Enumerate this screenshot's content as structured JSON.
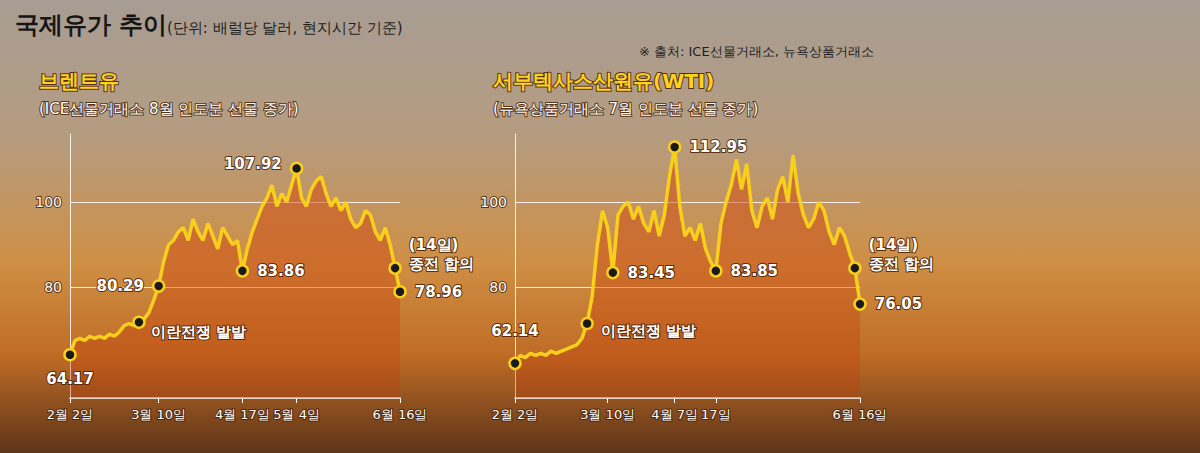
{
  "title": "국제유가 추이",
  "subtitle": "(단위: 배럴당 달러, 현지시간 기준)",
  "source": "※ 출처: ICE선물거래소, 뉴욕상품거래소",
  "chart_data": [
    {
      "type": "area",
      "title": "브렌트유",
      "subtitle": "(ICE선물거래소 8월 인도분 선물 종가)",
      "categories": [
        "2월 2일",
        null,
        null,
        null,
        null,
        null,
        null,
        null,
        null,
        null,
        null,
        null,
        null,
        null,
        null,
        null,
        null,
        null,
        "3월 10일",
        null,
        null,
        null,
        null,
        null,
        null,
        null,
        null,
        null,
        null,
        null,
        null,
        null,
        null,
        null,
        null,
        "4월 17일",
        null,
        null,
        null,
        null,
        null,
        null,
        null,
        null,
        null,
        null,
        "5월 4일",
        null,
        null,
        null,
        null,
        null,
        null,
        null,
        null,
        null,
        null,
        null,
        null,
        null,
        null,
        null,
        null,
        null,
        null,
        null,
        null,
        "6월 16일"
      ],
      "values": [
        64.17,
        67.5,
        68,
        67.5,
        68.5,
        68,
        68.5,
        68,
        69,
        68.5,
        69.5,
        71,
        71.5,
        71,
        71.8,
        72.5,
        74,
        77,
        80.29,
        86,
        90,
        91,
        93,
        94,
        91,
        96,
        93,
        91,
        95,
        92,
        89,
        94,
        92,
        90,
        91,
        83.86,
        89,
        93,
        96,
        99,
        101,
        104,
        99,
        102,
        100,
        104,
        107.92,
        101,
        99,
        103,
        105,
        106,
        102,
        99,
        101,
        98,
        100,
        96,
        94,
        95,
        98,
        97,
        93,
        91,
        94,
        90,
        84.5,
        78.96
      ],
      "color": "#f7cf1c",
      "marker": "circle",
      "ylim": [
        54,
        116
      ],
      "yticks": [
        80,
        100
      ],
      "grid": true,
      "annotations": [
        {
          "index": 0,
          "label": "64.17"
        },
        {
          "index": 14,
          "label": "이란전쟁 발발"
        },
        {
          "index": 18,
          "label": "80.29"
        },
        {
          "index": 35,
          "label": "83.86"
        },
        {
          "index": 46,
          "label": "107.92"
        },
        {
          "index": 66,
          "label": "(14일)\n종전 합의"
        },
        {
          "index": 67,
          "label": "78.96"
        }
      ]
    },
    {
      "type": "area",
      "title": "서부텍사스산원유(WTI)",
      "subtitle": "(뉴욕상품거래소 7월 인도분 선물 종가)",
      "categories": [
        "2월 2일",
        null,
        null,
        null,
        null,
        null,
        null,
        null,
        null,
        null,
        null,
        null,
        null,
        null,
        null,
        null,
        null,
        null,
        "3월 10일",
        null,
        null,
        null,
        null,
        null,
        null,
        null,
        null,
        null,
        null,
        null,
        null,
        "4월 7일",
        null,
        null,
        null,
        null,
        null,
        null,
        null,
        "17일",
        null,
        null,
        null,
        null,
        null,
        null,
        null,
        null,
        null,
        null,
        null,
        null,
        null,
        null,
        null,
        null,
        null,
        null,
        null,
        null,
        null,
        null,
        null,
        null,
        null,
        null,
        null,
        "6월 16일"
      ],
      "values": [
        62.14,
        64,
        63.5,
        64.5,
        64,
        64.5,
        64,
        65,
        64.5,
        65,
        65.5,
        66,
        66.5,
        68,
        71.5,
        78,
        90,
        98,
        94,
        83.45,
        97,
        99,
        100,
        96,
        99,
        95,
        93,
        98,
        92,
        97,
        106,
        112.95,
        99,
        92,
        94,
        91,
        95,
        89,
        86,
        83.85,
        95,
        100,
        104,
        110,
        103,
        109,
        98,
        94,
        99,
        101,
        96,
        103,
        106,
        100,
        111,
        102,
        97,
        94,
        96,
        100,
        98,
        93,
        90,
        94,
        92,
        88,
        84.5,
        76.05
      ],
      "color": "#f7cf1c",
      "marker": "circle",
      "ylim": [
        54,
        116
      ],
      "yticks": [
        80,
        100
      ],
      "grid": true,
      "annotations": [
        {
          "index": 0,
          "label": "62.14"
        },
        {
          "index": 14,
          "label": "이란전쟁 발발"
        },
        {
          "index": 19,
          "label": "83.45"
        },
        {
          "index": 31,
          "label": "112.95"
        },
        {
          "index": 39,
          "label": "83.85"
        },
        {
          "index": 66,
          "label": "(14일)\n종전 합의"
        },
        {
          "index": 67,
          "label": "76.05"
        }
      ]
    }
  ]
}
